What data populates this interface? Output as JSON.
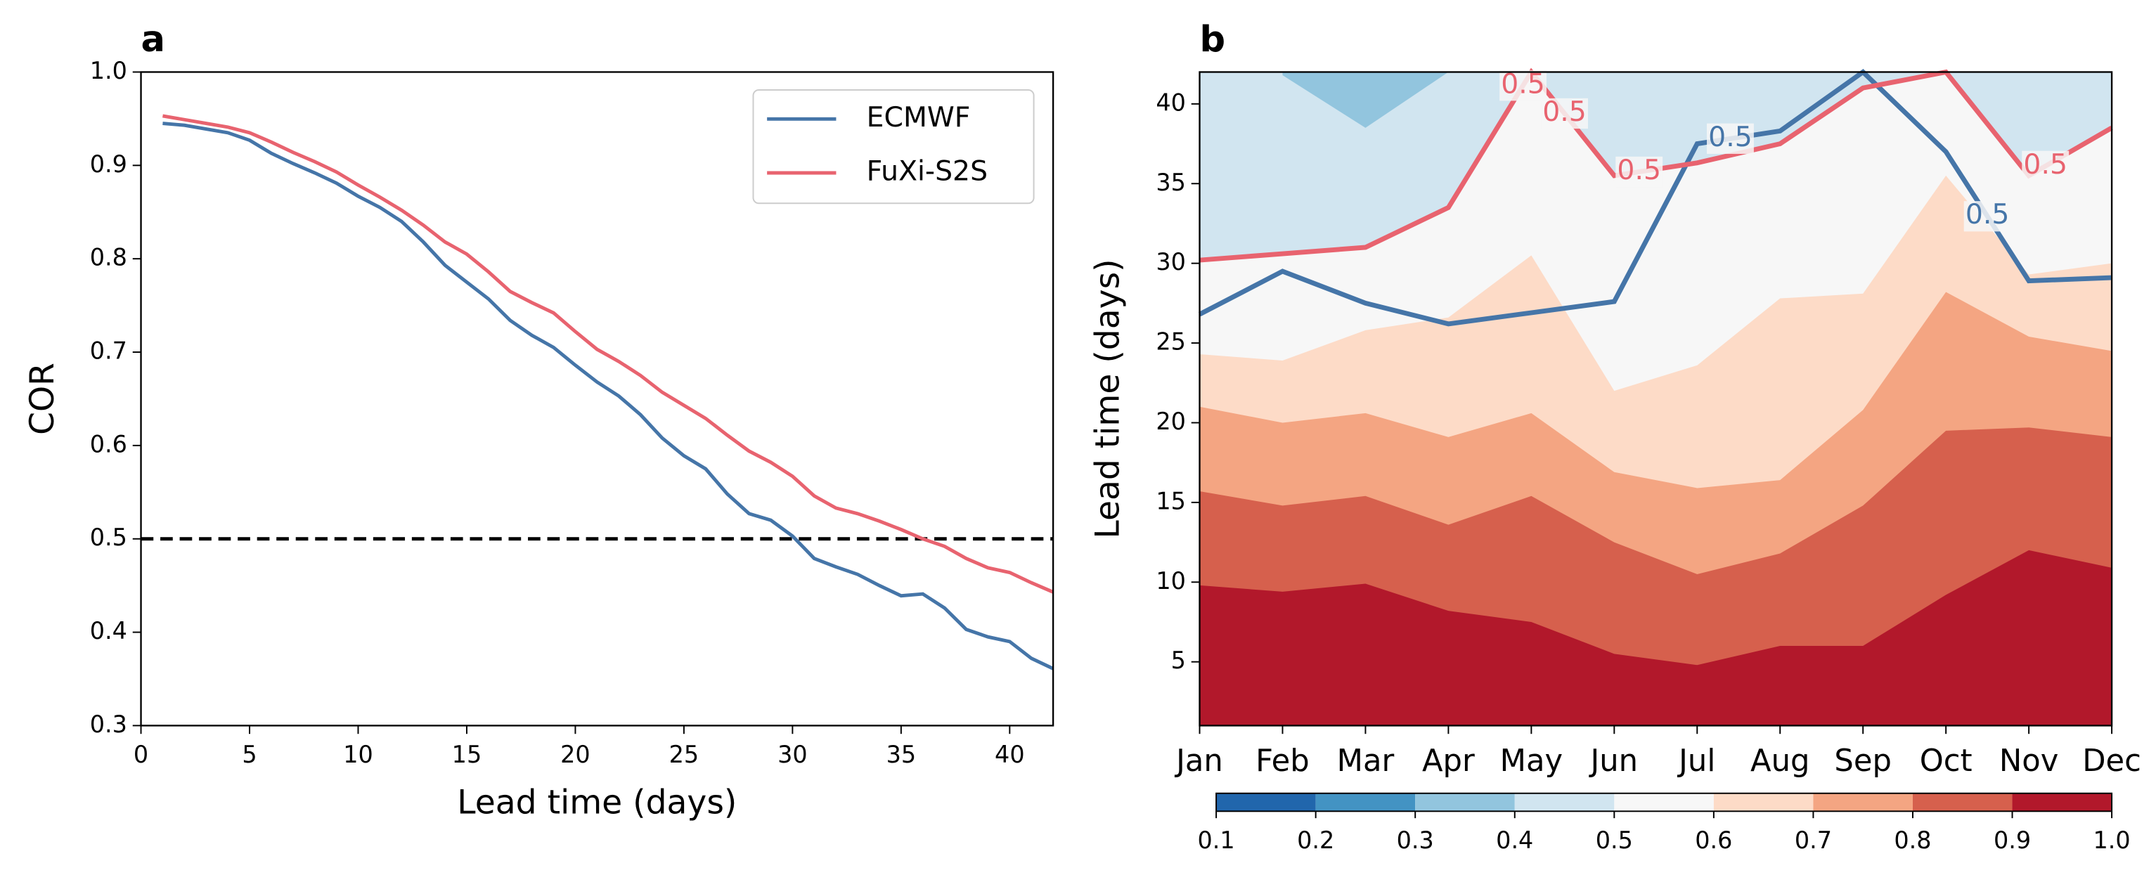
{
  "chart_data": [
    {
      "type": "line",
      "panel_label": "a",
      "xlabel": "Lead time (days)",
      "ylabel": "COR",
      "x": [
        1,
        2,
        3,
        4,
        5,
        6,
        7,
        8,
        9,
        10,
        11,
        12,
        13,
        14,
        15,
        16,
        17,
        18,
        19,
        20,
        21,
        22,
        23,
        24,
        25,
        26,
        27,
        28,
        29,
        30,
        31,
        32,
        33,
        34,
        35,
        36,
        37,
        38,
        39,
        40,
        41,
        42
      ],
      "series": [
        {
          "name": "ECMWF",
          "color": "#4575a8",
          "values": [
            0.945,
            0.943,
            0.939,
            0.935,
            0.927,
            0.913,
            0.902,
            0.892,
            0.881,
            0.867,
            0.855,
            0.84,
            0.818,
            0.793,
            0.775,
            0.757,
            0.734,
            0.718,
            0.705,
            0.686,
            0.668,
            0.653,
            0.633,
            0.608,
            0.589,
            0.575,
            0.548,
            0.527,
            0.52,
            0.503,
            0.479,
            0.47,
            0.462,
            0.45,
            0.439,
            0.441,
            0.426,
            0.403,
            0.395,
            0.39,
            0.372,
            0.361
          ]
        },
        {
          "name": "FuXi-S2S",
          "color": "#e8636f",
          "values": [
            0.953,
            0.949,
            0.945,
            0.941,
            0.935,
            0.925,
            0.914,
            0.904,
            0.893,
            0.879,
            0.866,
            0.852,
            0.836,
            0.818,
            0.805,
            0.786,
            0.765,
            0.753,
            0.742,
            0.722,
            0.703,
            0.69,
            0.675,
            0.657,
            0.643,
            0.629,
            0.611,
            0.594,
            0.582,
            0.567,
            0.546,
            0.533,
            0.527,
            0.519,
            0.51,
            0.5,
            0.492,
            0.479,
            0.469,
            0.464,
            0.453,
            0.443
          ]
        }
      ],
      "hline": 0.5,
      "xlim": [
        0,
        42
      ],
      "xticks": [
        0,
        5,
        10,
        15,
        20,
        25,
        30,
        35,
        40
      ],
      "ylim": [
        0.3,
        1.0
      ],
      "yticks": [
        0.3,
        0.4,
        0.5,
        0.6,
        0.7,
        0.8,
        0.9,
        {
          "value": 1.0,
          "label": "1.0"
        }
      ],
      "legend": "upper right"
    },
    {
      "type": "contour",
      "panel_label": "b",
      "ylabel": "Lead time (days)",
      "categories": [
        "Jan",
        "Feb",
        "Mar",
        "Apr",
        "May",
        "Jun",
        "Jul",
        "Aug",
        "Sep",
        "Oct",
        "Nov",
        "Dec"
      ],
      "ylim": [
        1,
        42
      ],
      "yticks": [
        5,
        10,
        15,
        20,
        25,
        30,
        35,
        40
      ],
      "base_color": "#b2182b",
      "boundaries": [
        {
          "level": 0.9,
          "color": "#d6604d",
          "values": [
            9.8,
            9.4,
            9.9,
            8.2,
            7.5,
            5.5,
            4.8,
            6,
            6,
            9.2,
            12,
            10.9
          ]
        },
        {
          "level": 0.8,
          "color": "#f4a582",
          "values": [
            15.7,
            14.8,
            15.4,
            13.6,
            15.4,
            12.5,
            10.5,
            11.8,
            14.8,
            19.5,
            19.7,
            19.1
          ]
        },
        {
          "level": 0.7,
          "color": "#fddbc7",
          "values": [
            21,
            20,
            20.6,
            19.1,
            20.6,
            16.9,
            15.9,
            16.4,
            20.8,
            28.2,
            25.4,
            24.5
          ]
        },
        {
          "level": 0.6,
          "color": "#f7f7f7",
          "values": [
            24.3,
            23.9,
            25.8,
            26.6,
            30.5,
            22,
            23.6,
            27.8,
            28.1,
            35.5,
            29.3,
            30
          ]
        },
        {
          "level": 0.5,
          "color": "#d1e5f0",
          "values": [
            30.2,
            30.6,
            31,
            33.5,
            42,
            35.5,
            36.3,
            37.5,
            41,
            42,
            35.5,
            38.5
          ]
        },
        {
          "level": 0.4,
          "color": "#92c5de",
          "values": [
            null,
            41.8,
            38.5,
            42,
            null,
            null,
            null,
            null,
            null,
            null,
            null,
            null
          ]
        }
      ],
      "contour_lines": [
        {
          "name": "ECMWF",
          "level": 0.5,
          "color": "#4575a8",
          "values": [
            26.8,
            29.5,
            27.5,
            26.2,
            26.9,
            27.6,
            37.5,
            38.3,
            42,
            37,
            28.9,
            29.1
          ]
        },
        {
          "name": "FuXi-S2S",
          "level": 0.5,
          "color": "#e8636f",
          "values": [
            30.2,
            30.6,
            31,
            33.5,
            42,
            35.5,
            36.3,
            37.5,
            41,
            42,
            35.5,
            38.5
          ]
        }
      ],
      "colorbar": {
        "colors": [
          "#2166ac",
          "#4393c3",
          "#92c5de",
          "#d1e5f0",
          "#f7f7f7",
          "#fddbc7",
          "#f4a582",
          "#d6604d",
          "#b2182b"
        ],
        "ticks": [
          0.1,
          0.2,
          0.3,
          0.4,
          0.5,
          0.6,
          0.7,
          0.8,
          0.9,
          {
            "value": 1.0,
            "label": "1.0"
          }
        ]
      }
    }
  ]
}
